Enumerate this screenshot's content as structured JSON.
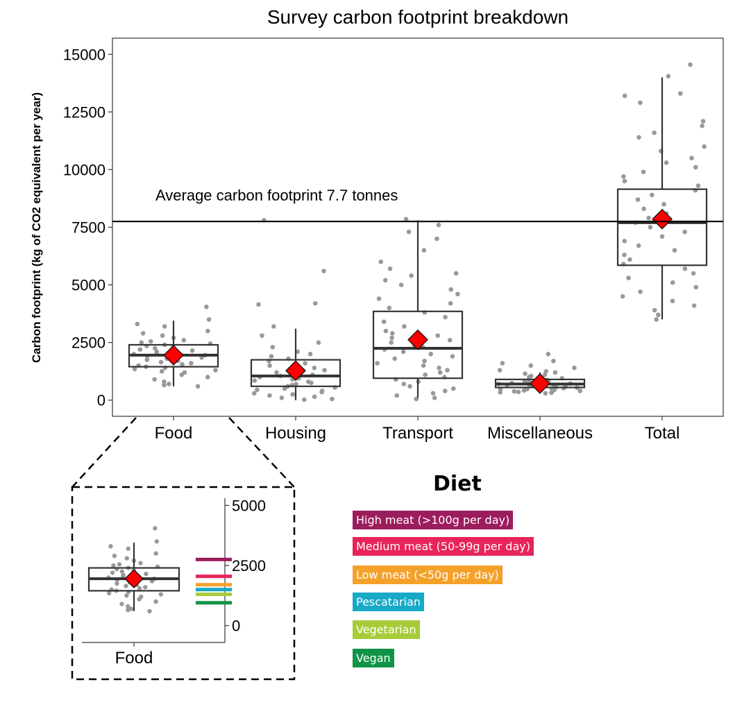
{
  "chart_data": [
    {
      "type": "box",
      "title": "Survey carbon footprint breakdown",
      "xlabel": "",
      "ylabel": "Carbon footprint (kg of CO2 equivalent per year)",
      "ylim": [
        -700,
        15700
      ],
      "yticks": [
        0,
        2500,
        5000,
        7500,
        10000,
        12500,
        15000
      ],
      "categories": [
        "Food",
        "Housing",
        "Transport",
        "Miscellaneous",
        "Total"
      ],
      "boxes": [
        {
          "category": "Food",
          "min": 600,
          "q1": 1450,
          "median": 1950,
          "q3": 2400,
          "max": 3450,
          "mean": 1950
        },
        {
          "category": "Housing",
          "min": 0,
          "q1": 600,
          "median": 1050,
          "q3": 1750,
          "max": 3100,
          "mean": 1280
        },
        {
          "category": "Transport",
          "min": 100,
          "q1": 950,
          "median": 2250,
          "q3": 3850,
          "max": 7800,
          "mean": 2620
        },
        {
          "category": "Miscellaneous",
          "min": 300,
          "q1": 550,
          "median": 700,
          "q3": 900,
          "max": 1200,
          "mean": 720
        },
        {
          "category": "Total",
          "min": 3500,
          "q1": 5850,
          "median": 7700,
          "q3": 9150,
          "max": 14000,
          "mean": 7850
        }
      ],
      "reference_line": {
        "value": 7750,
        "label": "Average carbon footprint 7.7 tonnes"
      },
      "jitter": {
        "Food": [
          4050,
          3500,
          3300,
          3200,
          3000,
          2900,
          2800,
          2700,
          2600,
          2550,
          2500,
          2450,
          2400,
          2350,
          2300,
          2250,
          2200,
          2150,
          2100,
          2050,
          2000,
          1950,
          1900,
          1850,
          1800,
          1750,
          1700,
          1650,
          1600,
          1550,
          1500,
          1450,
          1400,
          1350,
          1300,
          1250,
          1200,
          1100,
          1000,
          900,
          800,
          700,
          650,
          600
        ],
        "Housing": [
          7800,
          5600,
          4200,
          4150,
          3200,
          2800,
          2500,
          2300,
          2100,
          2000,
          1900,
          1800,
          1700,
          1600,
          1500,
          1400,
          1300,
          1200,
          1100,
          1050,
          1000,
          950,
          900,
          850,
          800,
          750,
          700,
          650,
          600,
          550,
          500,
          450,
          400,
          350,
          300,
          250,
          200,
          150,
          100,
          50,
          20
        ],
        "Transport": [
          7850,
          7600,
          7300,
          7000,
          6500,
          6000,
          5700,
          5500,
          5400,
          5200,
          5000,
          4800,
          4600,
          4400,
          4200,
          4000,
          3800,
          3600,
          3400,
          3200,
          3000,
          2900,
          2800,
          2700,
          2600,
          2500,
          2400,
          2300,
          2200,
          2100,
          2000,
          1900,
          1800,
          1700,
          1600,
          1500,
          1400,
          1300,
          1200,
          1100,
          1000,
          900,
          800,
          700,
          600,
          500,
          400,
          300,
          200,
          100,
          50
        ],
        "Miscellaneous": [
          2000,
          1700,
          1600,
          1500,
          1400,
          1300,
          1250,
          1200,
          1150,
          1100,
          1050,
          1000,
          950,
          900,
          880,
          850,
          820,
          800,
          780,
          760,
          740,
          720,
          700,
          680,
          660,
          640,
          620,
          600,
          580,
          560,
          540,
          520,
          500,
          480,
          460,
          440,
          420,
          400,
          380,
          360,
          340,
          320,
          300
        ],
        "Total": [
          14550,
          14050,
          13300,
          13200,
          12900,
          12100,
          11900,
          11600,
          11400,
          11000,
          10800,
          10500,
          10300,
          10100,
          9900,
          9700,
          9500,
          9300,
          9100,
          8900,
          8700,
          8500,
          8300,
          8100,
          7900,
          7700,
          7500,
          7300,
          7100,
          6900,
          6700,
          6500,
          6300,
          6100,
          5900,
          5700,
          5500,
          5300,
          5100,
          4900,
          4700,
          4500,
          4300,
          4100,
          3900,
          3700,
          3500
        ]
      }
    },
    {
      "type": "box",
      "title": "",
      "inset": true,
      "categories": [
        "Food"
      ],
      "ylim": [
        -700,
        5300
      ],
      "yticks": [
        0,
        2500,
        5000
      ],
      "boxes": [
        {
          "category": "Food",
          "min": 600,
          "q1": 1450,
          "median": 1950,
          "q3": 2400,
          "max": 3450,
          "mean": 1950
        }
      ],
      "diet_means": [
        {
          "diet": "High meat (>100g per day)",
          "value": 2750
        },
        {
          "diet": "Medium meat (50-99g per day)",
          "value": 2050
        },
        {
          "diet": "Low meat (<50g per day)",
          "value": 1700
        },
        {
          "diet": "Pescatarian",
          "value": 1500
        },
        {
          "diet": "Vegetarian",
          "value": 1300
        },
        {
          "diet": "Vegan",
          "value": 950
        }
      ]
    }
  ],
  "legend": {
    "title": "Diet",
    "items": [
      {
        "label": "High meat (>100g per day)",
        "color": "#9c1d5c"
      },
      {
        "label": "Medium meat (50-99g per day)",
        "color": "#e8245b"
      },
      {
        "label": "Low meat (<50g per day)",
        "color": "#f4a12a"
      },
      {
        "label": "Pescatarian",
        "color": "#17a9c6"
      },
      {
        "label": "Vegetarian",
        "color": "#a7cc3a"
      },
      {
        "label": "Vegan",
        "color": "#119447"
      }
    ]
  },
  "colors": {
    "points": "#999999",
    "box": "#333333",
    "mean_marker": "#ff0000"
  }
}
